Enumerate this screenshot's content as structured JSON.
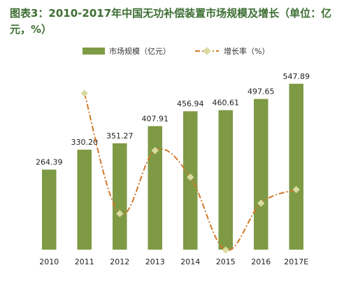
{
  "chart_data": {
    "type": "bar",
    "title": "图表3：2010-2017年中国无功补偿装置市场规模及增长（单位：亿元，%）",
    "categories": [
      "2010",
      "2011",
      "2012",
      "2013",
      "2014",
      "2015",
      "2016",
      "2017E"
    ],
    "series": [
      {
        "name": "市场规模（亿元）",
        "type": "bar",
        "values": [
          264.39,
          330.2,
          351.27,
          407.91,
          456.94,
          460.61,
          497.65,
          547.89
        ],
        "labels": [
          "264.39",
          "330.20",
          "351.27",
          "407.91",
          "456.94",
          "460.61",
          "497.65",
          "547.89"
        ]
      },
      {
        "name": "增长率（%）",
        "type": "line",
        "style": "dash-dot smoothed with diamond markers",
        "values": [
          null,
          24.9,
          6.4,
          16.1,
          12.0,
          0.8,
          8.0,
          10.1
        ]
      }
    ],
    "ylim_bar": [
      0,
      600
    ],
    "ylim_line": [
      0,
      30
    ],
    "grid": false,
    "legend_position": "top",
    "colors": {
      "bar": "#7e9a45",
      "line": "#d2782a",
      "marker": "#d9dba0",
      "title": "#3d6e33"
    }
  }
}
